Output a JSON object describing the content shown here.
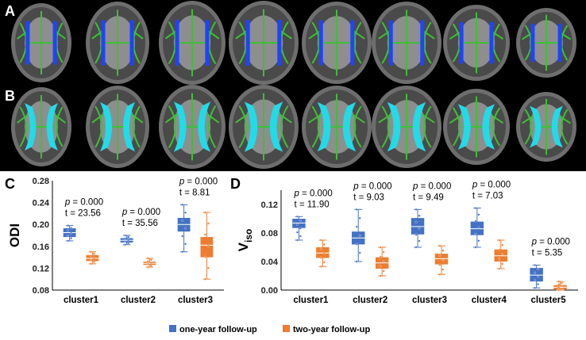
{
  "panel_labels": {
    "a": "A",
    "b": "B",
    "c": "C",
    "d": "D"
  },
  "colors": {
    "one_year": "#4472c4",
    "two_year": "#ed7d31",
    "tract_green": "#3fbf35",
    "cluster_blue": "#1f43ff",
    "cluster_cyan": "#21dbe8"
  },
  "legend": {
    "one_year": "one-year follow-up",
    "two_year": "two-year follow-up"
  },
  "chart_data": [
    {
      "type": "box",
      "panel": "C",
      "ylabel": "ODI",
      "ylim": [
        0.08,
        0.28
      ],
      "yticks": [
        "0.08",
        "0.12",
        "0.16",
        "0.20",
        "0.24",
        "0.28"
      ],
      "categories": [
        "cluster1",
        "cluster2",
        "cluster3"
      ],
      "annotations": [
        {
          "p": "= 0.000",
          "t": "t = 23.56"
        },
        {
          "p": "= 0.000",
          "t": "t = 35.56"
        },
        {
          "p": "= 0.000",
          "t": "t = 8.81"
        }
      ],
      "series": [
        {
          "name": "one-year follow-up",
          "boxes": [
            {
              "min": 0.17,
              "q1": 0.177,
              "median": 0.185,
              "q3": 0.193,
              "max": 0.198
            },
            {
              "min": 0.163,
              "q1": 0.167,
              "median": 0.171,
              "q3": 0.175,
              "max": 0.18
            },
            {
              "min": 0.15,
              "q1": 0.187,
              "median": 0.2,
              "q3": 0.212,
              "max": 0.236
            }
          ]
        },
        {
          "name": "two-year follow-up",
          "boxes": [
            {
              "min": 0.128,
              "q1": 0.133,
              "median": 0.138,
              "q3": 0.144,
              "max": 0.15
            },
            {
              "min": 0.122,
              "q1": 0.126,
              "median": 0.129,
              "q3": 0.132,
              "max": 0.138
            },
            {
              "min": 0.1,
              "q1": 0.14,
              "median": 0.162,
              "q3": 0.177,
              "max": 0.222
            }
          ]
        }
      ]
    },
    {
      "type": "box",
      "panel": "D",
      "ylabel": "V",
      "ylabel_sub": "iso",
      "ylim": [
        0.0,
        0.14
      ],
      "yticks": [
        "0.00",
        "0.04",
        "0.08",
        "0.12"
      ],
      "categories": [
        "cluster1",
        "cluster2",
        "cluster3",
        "cluster4",
        "cluster5"
      ],
      "annotations": [
        {
          "p": "= 0.000",
          "t": "t = 11.90"
        },
        {
          "p": "= 0.000",
          "t": "t = 9.03"
        },
        {
          "p": "= 0.000",
          "t": "t = 9.49"
        },
        {
          "p": "= 0.000",
          "t": "t = 7.03"
        },
        {
          "p": "= 0.000",
          "t": "t = 5.35"
        }
      ],
      "series": [
        {
          "name": "one-year follow-up",
          "boxes": [
            {
              "min": 0.07,
              "q1": 0.087,
              "median": 0.094,
              "q3": 0.1,
              "max": 0.103
            },
            {
              "min": 0.04,
              "q1": 0.064,
              "median": 0.073,
              "q3": 0.082,
              "max": 0.113
            },
            {
              "min": 0.06,
              "q1": 0.078,
              "median": 0.089,
              "q3": 0.101,
              "max": 0.113
            },
            {
              "min": 0.06,
              "q1": 0.077,
              "median": 0.086,
              "q3": 0.096,
              "max": 0.115
            },
            {
              "min": 0.003,
              "q1": 0.012,
              "median": 0.021,
              "q3": 0.031,
              "max": 0.035
            }
          ]
        },
        {
          "name": "two-year follow-up",
          "boxes": [
            {
              "min": 0.033,
              "q1": 0.045,
              "median": 0.052,
              "q3": 0.06,
              "max": 0.07
            },
            {
              "min": 0.02,
              "q1": 0.03,
              "median": 0.038,
              "q3": 0.046,
              "max": 0.06
            },
            {
              "min": 0.022,
              "q1": 0.036,
              "median": 0.044,
              "q3": 0.051,
              "max": 0.062
            },
            {
              "min": 0.03,
              "q1": 0.04,
              "median": 0.048,
              "q3": 0.057,
              "max": 0.07
            },
            {
              "min": 0.0,
              "q1": 0.001,
              "median": 0.004,
              "q3": 0.007,
              "max": 0.012
            }
          ]
        }
      ]
    }
  ]
}
